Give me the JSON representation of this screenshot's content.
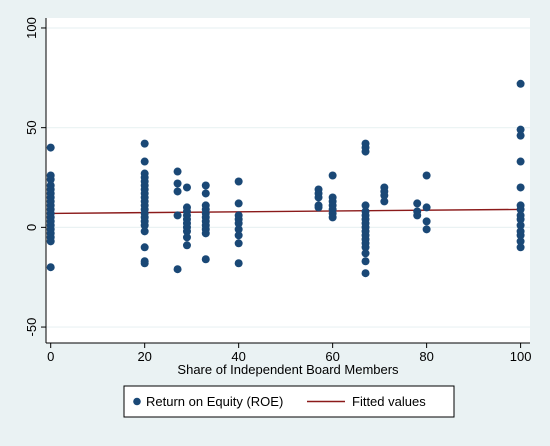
{
  "chart_data": {
    "type": "scatter",
    "xlabel": "Share of Independent Board Members",
    "ylabel": "",
    "xlim": [
      -1,
      102
    ],
    "ylim": [
      -58,
      105
    ],
    "x_ticks": [
      0,
      20,
      40,
      60,
      80,
      100
    ],
    "y_ticks": [
      -50,
      0,
      50,
      100
    ],
    "x_tick_labels": [
      "0",
      "20",
      "40",
      "60",
      "80",
      "100"
    ],
    "y_tick_labels": [
      "-50",
      "0",
      "50",
      "100"
    ],
    "grid": "y-major",
    "legend_position": "bottom",
    "colors": {
      "points": "#1a4876",
      "fit_line": "#8b1a1a",
      "outer_background": "#eaf2f3",
      "plot_background": "#ffffff",
      "grid": "#eaf2f3"
    },
    "series": [
      {
        "name": "Return on Equity (ROE)",
        "kind": "scatter",
        "points": [
          [
            0,
            40
          ],
          [
            0,
            26
          ],
          [
            0,
            24
          ],
          [
            0,
            21
          ],
          [
            0,
            19
          ],
          [
            0,
            17
          ],
          [
            0,
            15
          ],
          [
            0,
            13
          ],
          [
            0,
            11
          ],
          [
            0,
            9
          ],
          [
            0,
            7
          ],
          [
            0,
            5
          ],
          [
            0,
            3
          ],
          [
            0,
            1
          ],
          [
            0,
            -1
          ],
          [
            0,
            -3
          ],
          [
            0,
            -5
          ],
          [
            0,
            -7
          ],
          [
            0,
            -20
          ],
          [
            20,
            42
          ],
          [
            20,
            33
          ],
          [
            20,
            27
          ],
          [
            20,
            25
          ],
          [
            20,
            23
          ],
          [
            20,
            21
          ],
          [
            20,
            19
          ],
          [
            20,
            17
          ],
          [
            20,
            15
          ],
          [
            20,
            13
          ],
          [
            20,
            11
          ],
          [
            20,
            9
          ],
          [
            20,
            7
          ],
          [
            20,
            5
          ],
          [
            20,
            3
          ],
          [
            20,
            1
          ],
          [
            20,
            -2
          ],
          [
            20,
            -10
          ],
          [
            20,
            -17
          ],
          [
            20,
            -18
          ],
          [
            27,
            28
          ],
          [
            27,
            22
          ],
          [
            27,
            18
          ],
          [
            27,
            6
          ],
          [
            27,
            -21
          ],
          [
            29,
            20
          ],
          [
            29,
            10
          ],
          [
            29,
            8
          ],
          [
            29,
            6
          ],
          [
            29,
            4
          ],
          [
            29,
            2
          ],
          [
            29,
            0
          ],
          [
            29,
            -2
          ],
          [
            29,
            -5
          ],
          [
            29,
            -9
          ],
          [
            33,
            21
          ],
          [
            33,
            17
          ],
          [
            33,
            11
          ],
          [
            33,
            9
          ],
          [
            33,
            7
          ],
          [
            33,
            5
          ],
          [
            33,
            3
          ],
          [
            33,
            1
          ],
          [
            33,
            -1
          ],
          [
            33,
            -3
          ],
          [
            33,
            -16
          ],
          [
            40,
            23
          ],
          [
            40,
            12
          ],
          [
            40,
            6
          ],
          [
            40,
            4
          ],
          [
            40,
            2
          ],
          [
            40,
            -1
          ],
          [
            40,
            -4
          ],
          [
            40,
            -8
          ],
          [
            40,
            -18
          ],
          [
            57,
            19
          ],
          [
            57,
            17
          ],
          [
            57,
            15
          ],
          [
            57,
            11
          ],
          [
            57,
            10
          ],
          [
            60,
            26
          ],
          [
            60,
            15
          ],
          [
            60,
            13
          ],
          [
            60,
            11
          ],
          [
            60,
            9
          ],
          [
            60,
            7
          ],
          [
            60,
            5
          ],
          [
            67,
            42
          ],
          [
            67,
            40
          ],
          [
            67,
            38
          ],
          [
            67,
            11
          ],
          [
            67,
            8
          ],
          [
            67,
            6
          ],
          [
            67,
            4
          ],
          [
            67,
            2
          ],
          [
            67,
            0
          ],
          [
            67,
            -2
          ],
          [
            67,
            -4
          ],
          [
            67,
            -6
          ],
          [
            67,
            -8
          ],
          [
            67,
            -10
          ],
          [
            67,
            -13
          ],
          [
            67,
            -17
          ],
          [
            67,
            -23
          ],
          [
            71,
            20
          ],
          [
            71,
            18
          ],
          [
            71,
            16
          ],
          [
            71,
            13
          ],
          [
            78,
            12
          ],
          [
            78,
            8
          ],
          [
            78,
            6
          ],
          [
            80,
            26
          ],
          [
            80,
            10
          ],
          [
            80,
            3
          ],
          [
            80,
            -1
          ],
          [
            100,
            72
          ],
          [
            100,
            49
          ],
          [
            100,
            46
          ],
          [
            100,
            33
          ],
          [
            100,
            20
          ],
          [
            100,
            11
          ],
          [
            100,
            9
          ],
          [
            100,
            6
          ],
          [
            100,
            4
          ],
          [
            100,
            1
          ],
          [
            100,
            -2
          ],
          [
            100,
            -4
          ],
          [
            100,
            -7
          ],
          [
            100,
            -10
          ]
        ]
      },
      {
        "name": "Fitted values",
        "kind": "line",
        "x": [
          0,
          100
        ],
        "y": [
          7,
          9
        ]
      }
    ]
  }
}
